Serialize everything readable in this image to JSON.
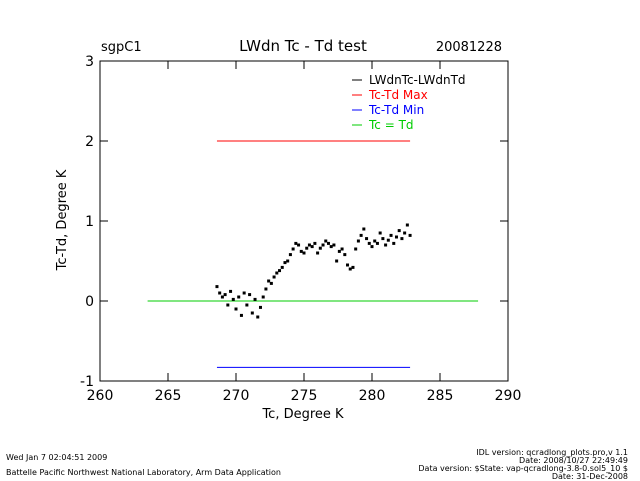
{
  "header": {
    "site": "sgpC1",
    "date": "20081228"
  },
  "footer": {
    "run_time": "Wed Jan  7 02:04:51 2009",
    "organization": "Battelle Pacific Northwest National Laboratory, Arm Data Application",
    "idl_version": "IDL version: qcradlong_plots.pro,v 1.1",
    "idl_date": "Date: 2008/10/27 22:49:49",
    "data_version": "Data version: $State: vap-qcradlong-3.8-0.sol5_10 $",
    "data_date": "Date: 31-Dec-2008"
  },
  "chart_data": {
    "type": "scatter",
    "title": "LWdn Tc - Td test",
    "xlabel": "Tc, Degree K",
    "ylabel": "Tc-Td, Degree K",
    "xlim": [
      260,
      290
    ],
    "ylim": [
      -1,
      3
    ],
    "xticks": [
      260,
      265,
      270,
      275,
      280,
      285,
      290
    ],
    "yticks": [
      -1,
      0,
      1,
      2,
      3
    ],
    "grid": false,
    "legend_position": "top-right",
    "legend": [
      {
        "label": "LWdnTc-LWdnTd",
        "color": "#000000"
      },
      {
        "label": "Tc-Td Max",
        "color": "#ff0000"
      },
      {
        "label": "Tc-Td Min",
        "color": "#0000ff"
      },
      {
        "label": "Tc = Td",
        "color": "#00cc00"
      }
    ],
    "series": [
      {
        "name": "LWdnTc-LWdnTd",
        "color": "#000000",
        "x": [
          268.6,
          268.8,
          269.0,
          269.2,
          269.4,
          269.6,
          269.8,
          270.0,
          270.2,
          270.4,
          270.6,
          270.8,
          271.0,
          271.2,
          271.4,
          271.6,
          271.8,
          272.0,
          272.2,
          272.4,
          272.6,
          272.8,
          273.0,
          273.2,
          273.4,
          273.6,
          273.8,
          274.0,
          274.2,
          274.4,
          274.6,
          274.8,
          275.0,
          275.2,
          275.4,
          275.6,
          275.8,
          276.0,
          276.2,
          276.4,
          276.6,
          276.8,
          277.0,
          277.2,
          277.4,
          277.6,
          277.8,
          278.0,
          278.2,
          278.4,
          278.6,
          278.8,
          279.0,
          279.2,
          279.4,
          279.6,
          279.8,
          280.0,
          280.2,
          280.4,
          280.6,
          280.8,
          281.0,
          281.2,
          281.4,
          281.6,
          281.8,
          282.0,
          282.2,
          282.4,
          282.6,
          282.8
        ],
        "y": [
          0.18,
          0.1,
          0.05,
          0.08,
          -0.05,
          0.12,
          0.02,
          -0.1,
          0.05,
          -0.18,
          0.1,
          -0.05,
          0.08,
          -0.15,
          0.02,
          -0.2,
          -0.08,
          0.05,
          0.15,
          0.25,
          0.22,
          0.3,
          0.35,
          0.38,
          0.42,
          0.48,
          0.5,
          0.58,
          0.65,
          0.72,
          0.7,
          0.62,
          0.6,
          0.66,
          0.7,
          0.68,
          0.72,
          0.6,
          0.66,
          0.7,
          0.75,
          0.72,
          0.68,
          0.7,
          0.5,
          0.62,
          0.65,
          0.58,
          0.45,
          0.4,
          0.42,
          0.65,
          0.75,
          0.82,
          0.9,
          0.78,
          0.72,
          0.68,
          0.75,
          0.72,
          0.85,
          0.78,
          0.7,
          0.76,
          0.82,
          0.72,
          0.8,
          0.88,
          0.78,
          0.85,
          0.95,
          0.82
        ]
      },
      {
        "name": "Tc-Td Max",
        "color": "#ff0000",
        "x": [
          268.6,
          282.8
        ],
        "y": [
          2.0,
          2.0
        ]
      },
      {
        "name": "Tc-Td Min",
        "color": "#0000ff",
        "x": [
          268.6,
          282.8
        ],
        "y": [
          -0.83,
          -0.83
        ]
      },
      {
        "name": "Tc = Td",
        "color": "#00cc00",
        "x": [
          263.5,
          287.8
        ],
        "y": [
          0.0,
          0.0
        ]
      }
    ]
  }
}
